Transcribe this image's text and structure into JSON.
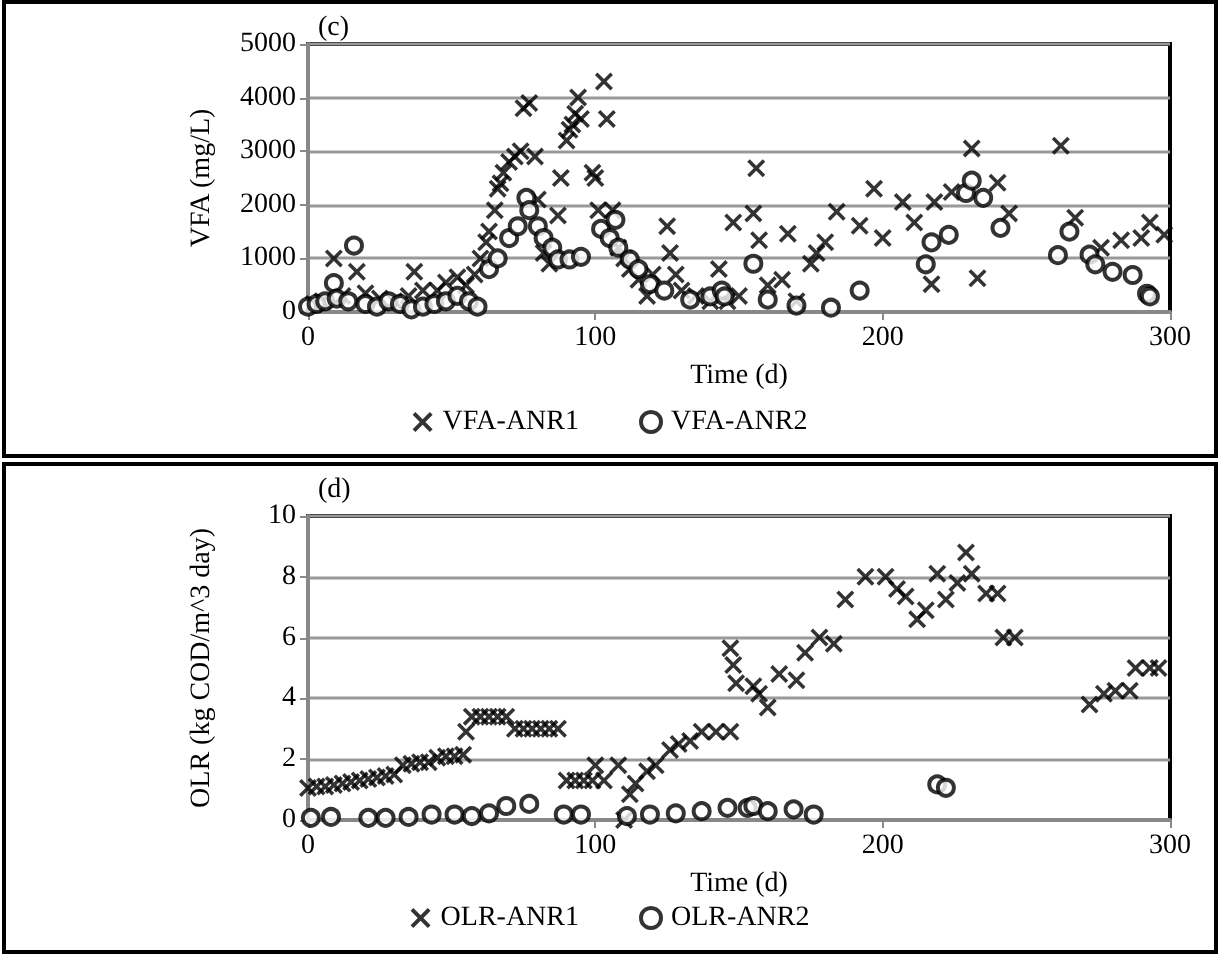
{
  "chart_data": [
    {
      "type": "scatter",
      "title": "(c)",
      "xlabel": "Time (d)",
      "ylabel": "VFA (mg/L)",
      "xlim": [
        0,
        300
      ],
      "xticks": [
        0,
        100,
        200,
        300
      ],
      "ylim": [
        0,
        5000
      ],
      "yticks": [
        0,
        1000,
        2000,
        3000,
        4000,
        5000
      ],
      "grid": "y",
      "legend": "bottom",
      "series": [
        {
          "name": "VFA-ANR1",
          "color": "#000000",
          "marker": "cross",
          "x": [
            2,
            5,
            9,
            12,
            17,
            20,
            25,
            30,
            35,
            37,
            40,
            45,
            48,
            52,
            55,
            58,
            60,
            62,
            63,
            65,
            66,
            67,
            68,
            70,
            72,
            74,
            75,
            77,
            79,
            80,
            82,
            84,
            87,
            88,
            90,
            91,
            92,
            93,
            94,
            95,
            99,
            100,
            101,
            103,
            104,
            106,
            108,
            110,
            112,
            115,
            118,
            120,
            125,
            126,
            128,
            130,
            135,
            140,
            143,
            146,
            148,
            150,
            155,
            156,
            157,
            160,
            165,
            167,
            170,
            175,
            177,
            180,
            184,
            192,
            197,
            200,
            207,
            211,
            217,
            218,
            224,
            231,
            233,
            240,
            244,
            262,
            267,
            276,
            283,
            290,
            293,
            298
          ],
          "values": [
            150,
            200,
            1000,
            300,
            750,
            350,
            250,
            200,
            300,
            750,
            400,
            400,
            550,
            650,
            500,
            700,
            1000,
            1300,
            1500,
            1900,
            2300,
            2400,
            2600,
            2800,
            2900,
            3000,
            3800,
            3900,
            2900,
            2100,
            1100,
            900,
            1800,
            2500,
            3200,
            3400,
            3500,
            3700,
            4000,
            3600,
            2600,
            2500,
            1900,
            4300,
            3600,
            1900,
            1200,
            1000,
            800,
            600,
            300,
            700,
            1600,
            1100,
            700,
            400,
            300,
            200,
            800,
            200,
            1670,
            300,
            1840,
            2680,
            1340,
            500,
            600,
            1460,
            200,
            900,
            1100,
            1300,
            1870,
            1610,
            2300,
            1380,
            2050,
            1670,
            520,
            2050,
            2240,
            3050,
            630,
            2410,
            1840,
            3100,
            1760,
            1200,
            1340,
            1380,
            1670,
            1440
          ]
        },
        {
          "name": "VFA-ANR2",
          "color": "#000000",
          "marker": "circle",
          "x": [
            0,
            3,
            6,
            9,
            10,
            14,
            16,
            20,
            24,
            28,
            32,
            36,
            40,
            44,
            48,
            52,
            56,
            59,
            63,
            66,
            70,
            73,
            76,
            77,
            80,
            82,
            85,
            87,
            91,
            95,
            102,
            105,
            107,
            108,
            112,
            115,
            119,
            124,
            133,
            140,
            144,
            145,
            155,
            160,
            170,
            182,
            192,
            215,
            217,
            223,
            229,
            231,
            235,
            241,
            261,
            265,
            272,
            274,
            280,
            287,
            292,
            293
          ],
          "values": [
            100,
            150,
            200,
            540,
            250,
            200,
            1240,
            150,
            100,
            200,
            150,
            50,
            100,
            150,
            200,
            300,
            200,
            100,
            800,
            1000,
            1380,
            1600,
            2130,
            1900,
            1600,
            1380,
            1200,
            980,
            980,
            1030,
            1550,
            1380,
            1720,
            1200,
            980,
            800,
            520,
            400,
            230,
            290,
            400,
            290,
            900,
            230,
            120,
            80,
            400,
            890,
            1300,
            1440,
            2220,
            2450,
            2130,
            1570,
            1060,
            1500,
            1070,
            890,
            750,
            690,
            340,
            290
          ]
        }
      ]
    },
    {
      "type": "scatter",
      "title": "(d)",
      "xlabel": "Time (d)",
      "ylabel": "OLR (kg COD/m^3 day)",
      "xlim": [
        0,
        300
      ],
      "xticks": [
        0,
        100,
        200,
        300
      ],
      "ylim": [
        0,
        10
      ],
      "yticks": [
        0,
        2,
        4,
        6,
        8,
        10
      ],
      "grid": "y",
      "legend": "bottom",
      "series": [
        {
          "name": "OLR-ANR1",
          "color": "#000000",
          "marker": "cross",
          "x": [
            0,
            3,
            6,
            9,
            12,
            15,
            18,
            21,
            24,
            27,
            30,
            33,
            36,
            39,
            42,
            45,
            48,
            51,
            54,
            55,
            57,
            60,
            63,
            66,
            69,
            72,
            75,
            78,
            81,
            84,
            87,
            90,
            93,
            96,
            99,
            100,
            103,
            108,
            110,
            112,
            114,
            118,
            121,
            126,
            129,
            133,
            137,
            142,
            147,
            147,
            148,
            149,
            155,
            157,
            160,
            164,
            170,
            173,
            178,
            183,
            187,
            194,
            201,
            205,
            208,
            212,
            215,
            219,
            222,
            226,
            229,
            231,
            236,
            240,
            242,
            246,
            272,
            277,
            281,
            286,
            288,
            293,
            296
          ],
          "values": [
            1.05,
            1.1,
            1.1,
            1.15,
            1.2,
            1.25,
            1.3,
            1.35,
            1.4,
            1.45,
            1.5,
            1.8,
            1.85,
            1.9,
            1.9,
            2.05,
            2.1,
            2.1,
            2.15,
            2.9,
            3.4,
            3.4,
            3.4,
            3.4,
            3.4,
            3.0,
            3.0,
            3.0,
            3.0,
            3.0,
            3.0,
            1.3,
            1.3,
            1.3,
            1.3,
            1.8,
            1.3,
            1.8,
            0,
            0.85,
            1.2,
            1.6,
            1.8,
            2.3,
            2.5,
            2.6,
            2.9,
            2.9,
            2.9,
            5.65,
            5.1,
            4.5,
            4.4,
            4.15,
            3.7,
            4.8,
            4.6,
            5.5,
            6.0,
            5.8,
            7.25,
            8.0,
            8.0,
            7.6,
            7.35,
            6.6,
            6.9,
            8.1,
            7.25,
            7.8,
            8.8,
            8.1,
            7.45,
            7.45,
            6.0,
            6.0,
            3.8,
            4.15,
            4.25,
            4.25,
            5.0,
            5.0,
            5.0
          ]
        },
        {
          "name": "OLR-ANR2",
          "color": "#000000",
          "marker": "circle",
          "x": [
            1,
            8,
            21,
            27,
            35,
            43,
            51,
            57,
            63,
            69,
            77,
            89,
            95,
            111,
            119,
            128,
            137,
            146,
            153,
            155,
            160,
            169,
            176,
            219,
            222
          ],
          "values": [
            0.07,
            0.1,
            0.07,
            0.07,
            0.1,
            0.18,
            0.18,
            0.13,
            0.22,
            0.46,
            0.53,
            0.18,
            0.18,
            0.13,
            0.18,
            0.22,
            0.29,
            0.4,
            0.4,
            0.46,
            0.29,
            0.35,
            0.18,
            1.17,
            1.06
          ]
        }
      ]
    }
  ]
}
